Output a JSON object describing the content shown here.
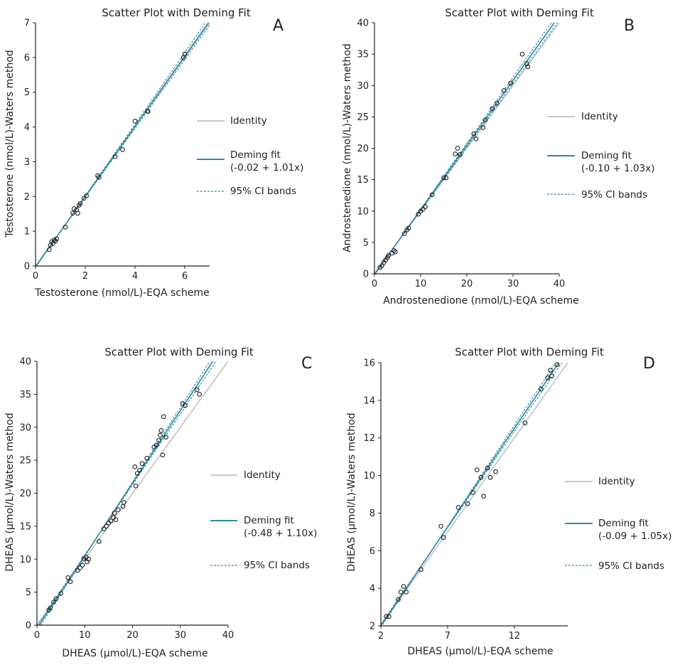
{
  "colors": {
    "identity": "#b5b5b5",
    "deming": "#2e8ca6",
    "ci": "#2e8ca6",
    "fit_dark": "#1f3b45",
    "axis": "#222222",
    "marker": "#222222"
  },
  "chart_data": [
    {
      "type": "scatter",
      "panel": "A",
      "title": "Scatter Plot with Deming Fit",
      "xlabel": "Testosterone (nmol/L)-EQA scheme",
      "ylabel": "Testosterone (nmol/L)-Waters method",
      "xlim": [
        0,
        7
      ],
      "ylim": [
        0,
        7
      ],
      "xticks": [
        0,
        2,
        4,
        6
      ],
      "yticks": [
        0,
        1,
        2,
        3,
        4,
        5,
        6,
        7
      ],
      "legend": {
        "identity": "Identity",
        "deming_line1": "Deming fit",
        "deming_line2": "(-0.02 + 1.01x)",
        "ci": "95% CI bands"
      },
      "fit": {
        "intercept": -0.02,
        "slope": 1.01
      },
      "ci": {
        "lower": {
          "intercept": 0.0,
          "slope": 0.99
        },
        "upper": {
          "intercept": -0.04,
          "slope": 1.03
        }
      },
      "points": [
        [
          0.55,
          0.47
        ],
        [
          0.6,
          0.6
        ],
        [
          0.65,
          0.7
        ],
        [
          0.7,
          0.65
        ],
        [
          0.75,
          0.75
        ],
        [
          0.8,
          0.72
        ],
        [
          0.85,
          0.78
        ],
        [
          1.2,
          1.12
        ],
        [
          1.5,
          1.52
        ],
        [
          1.55,
          1.65
        ],
        [
          1.65,
          1.62
        ],
        [
          1.7,
          1.52
        ],
        [
          1.75,
          1.75
        ],
        [
          1.8,
          1.8
        ],
        [
          1.95,
          1.95
        ],
        [
          2.05,
          2.02
        ],
        [
          2.5,
          2.6
        ],
        [
          2.55,
          2.55
        ],
        [
          3.2,
          3.15
        ],
        [
          3.5,
          3.35
        ],
        [
          4.0,
          4.17
        ],
        [
          4.5,
          4.45
        ],
        [
          4.52,
          4.45
        ],
        [
          5.95,
          6.0
        ],
        [
          6.0,
          6.1
        ]
      ]
    },
    {
      "type": "scatter",
      "panel": "B",
      "title": "Scatter Plot with Deming Fit",
      "xlabel": "Androstenedione (nmol/L)-EQA scheme",
      "ylabel": "Androstenedione (nmol/L)-Waters method",
      "xlim": [
        0,
        40
      ],
      "ylim": [
        0,
        40
      ],
      "xticks": [
        0,
        10,
        20,
        30,
        40
      ],
      "yticks": [
        0,
        5,
        10,
        15,
        20,
        25,
        30,
        35,
        40
      ],
      "legend": {
        "identity": "Identity",
        "deming_line1": "Deming fit",
        "deming_line2": "(-0.10 + 1.03x)",
        "ci": "95% CI bands"
      },
      "fit": {
        "intercept": -0.1,
        "slope": 1.03
      },
      "ci": {
        "lower": {
          "intercept": 0.0,
          "slope": 1.01
        },
        "upper": {
          "intercept": -0.2,
          "slope": 1.05
        }
      },
      "points": [
        [
          1.2,
          1.0
        ],
        [
          1.6,
          1.3
        ],
        [
          2.0,
          1.8
        ],
        [
          2.4,
          2.2
        ],
        [
          2.8,
          2.6
        ],
        [
          3.0,
          2.9
        ],
        [
          3.8,
          3.3
        ],
        [
          4.2,
          3.7
        ],
        [
          4.5,
          3.5
        ],
        [
          6.5,
          6.4
        ],
        [
          7.0,
          7.0
        ],
        [
          7.4,
          7.3
        ],
        [
          9.5,
          9.5
        ],
        [
          10.0,
          10.0
        ],
        [
          10.5,
          10.3
        ],
        [
          11.0,
          10.7
        ],
        [
          12.5,
          12.6
        ],
        [
          15.0,
          15.3
        ],
        [
          15.5,
          15.3
        ],
        [
          17.5,
          19.1
        ],
        [
          18.0,
          20.0
        ],
        [
          18.5,
          19.0
        ],
        [
          21.5,
          22.3
        ],
        [
          22.0,
          21.5
        ],
        [
          23.5,
          23.3
        ],
        [
          24.0,
          24.5
        ],
        [
          25.5,
          26.3
        ],
        [
          26.5,
          27.2
        ],
        [
          28.0,
          29.2
        ],
        [
          29.5,
          30.4
        ],
        [
          32.0,
          35.0
        ],
        [
          33.0,
          33.5
        ],
        [
          33.2,
          33.0
        ]
      ]
    },
    {
      "type": "scatter",
      "panel": "C",
      "title": "Scatter Plot with Deming Fit",
      "xlabel": "DHEAS (µmol/L)-EQA scheme",
      "ylabel": "DHEAS (µmol/L)-Waters method",
      "xlim": [
        0,
        40
      ],
      "ylim": [
        0,
        40
      ],
      "xticks": [
        0,
        10,
        20,
        30,
        40
      ],
      "yticks": [
        0,
        5,
        10,
        15,
        20,
        25,
        30,
        35,
        40
      ],
      "legend": {
        "identity": "Identity",
        "deming_line1": "Deming fit",
        "deming_line2": "(-0.48 + 1.10x)",
        "ci": "95% CI bands"
      },
      "fit": {
        "intercept": -0.48,
        "slope": 1.1
      },
      "ci": {
        "lower": {
          "intercept": -0.1,
          "slope": 1.07
        },
        "upper": {
          "intercept": -0.9,
          "slope": 1.13
        }
      },
      "points": [
        [
          2.5,
          2.3
        ],
        [
          2.8,
          2.6
        ],
        [
          3.5,
          3.5
        ],
        [
          4.0,
          4.0
        ],
        [
          5.0,
          4.8
        ],
        [
          6.5,
          7.2
        ],
        [
          7.0,
          6.6
        ],
        [
          8.5,
          8.3
        ],
        [
          9.0,
          8.7
        ],
        [
          9.5,
          9.1
        ],
        [
          9.8,
          10.1
        ],
        [
          10.3,
          10.3
        ],
        [
          10.5,
          9.6
        ],
        [
          10.8,
          10.0
        ],
        [
          13.0,
          12.7
        ],
        [
          14.0,
          14.6
        ],
        [
          14.5,
          15.0
        ],
        [
          15.0,
          15.5
        ],
        [
          15.5,
          15.8
        ],
        [
          16.0,
          16.3
        ],
        [
          16.2,
          17.0
        ],
        [
          16.5,
          16.0
        ],
        [
          17.0,
          17.5
        ],
        [
          18.0,
          18.0
        ],
        [
          18.2,
          18.6
        ],
        [
          20.5,
          24.0
        ],
        [
          20.7,
          21.1
        ],
        [
          21.0,
          23.0
        ],
        [
          21.5,
          23.5
        ],
        [
          22.0,
          24.5
        ],
        [
          23.0,
          25.3
        ],
        [
          24.5,
          27.0
        ],
        [
          25.0,
          27.3
        ],
        [
          25.5,
          28.0
        ],
        [
          25.8,
          28.8
        ],
        [
          26.0,
          29.5
        ],
        [
          26.3,
          25.8
        ],
        [
          26.5,
          31.6
        ],
        [
          27.0,
          28.5
        ],
        [
          30.5,
          33.6
        ],
        [
          31.0,
          33.3
        ],
        [
          33.5,
          35.7
        ],
        [
          34.0,
          35.0
        ]
      ]
    },
    {
      "type": "scatter",
      "panel": "D",
      "title": "Scatter Plot with Deming Fit",
      "xlabel": "DHEAS (µmol/L)-EQA scheme",
      "ylabel": "DHEAS (µmol/L)-Waters method",
      "xlim": [
        2,
        16
      ],
      "ylim": [
        2,
        16
      ],
      "xticks": [
        2,
        7,
        12
      ],
      "yticks": [
        2,
        4,
        6,
        8,
        10,
        12,
        14,
        16
      ],
      "legend": {
        "identity": "Identity",
        "deming_line1": "Deming fit",
        "deming_line2": "(-0.09 + 1.05x)",
        "ci": "95% CI bands"
      },
      "fit": {
        "intercept": -0.09,
        "slope": 1.05
      },
      "ci": {
        "lower": {
          "intercept": 0.05,
          "slope": 1.025
        },
        "upper": {
          "intercept": -0.23,
          "slope": 1.075
        }
      },
      "points": [
        [
          2.4,
          2.5
        ],
        [
          2.6,
          2.5
        ],
        [
          3.3,
          3.4
        ],
        [
          3.5,
          3.8
        ],
        [
          3.7,
          4.1
        ],
        [
          3.9,
          3.8
        ],
        [
          5.0,
          5.0
        ],
        [
          6.5,
          7.3
        ],
        [
          6.7,
          6.7
        ],
        [
          7.8,
          8.3
        ],
        [
          8.5,
          8.5
        ],
        [
          8.9,
          9.1
        ],
        [
          9.2,
          10.3
        ],
        [
          9.5,
          9.9
        ],
        [
          9.7,
          8.9
        ],
        [
          10.0,
          10.4
        ],
        [
          10.2,
          9.9
        ],
        [
          10.6,
          10.2
        ],
        [
          12.8,
          12.8
        ],
        [
          14.0,
          14.6
        ],
        [
          14.5,
          15.2
        ],
        [
          14.8,
          15.3
        ],
        [
          14.7,
          15.6
        ],
        [
          15.2,
          15.9
        ]
      ]
    }
  ]
}
